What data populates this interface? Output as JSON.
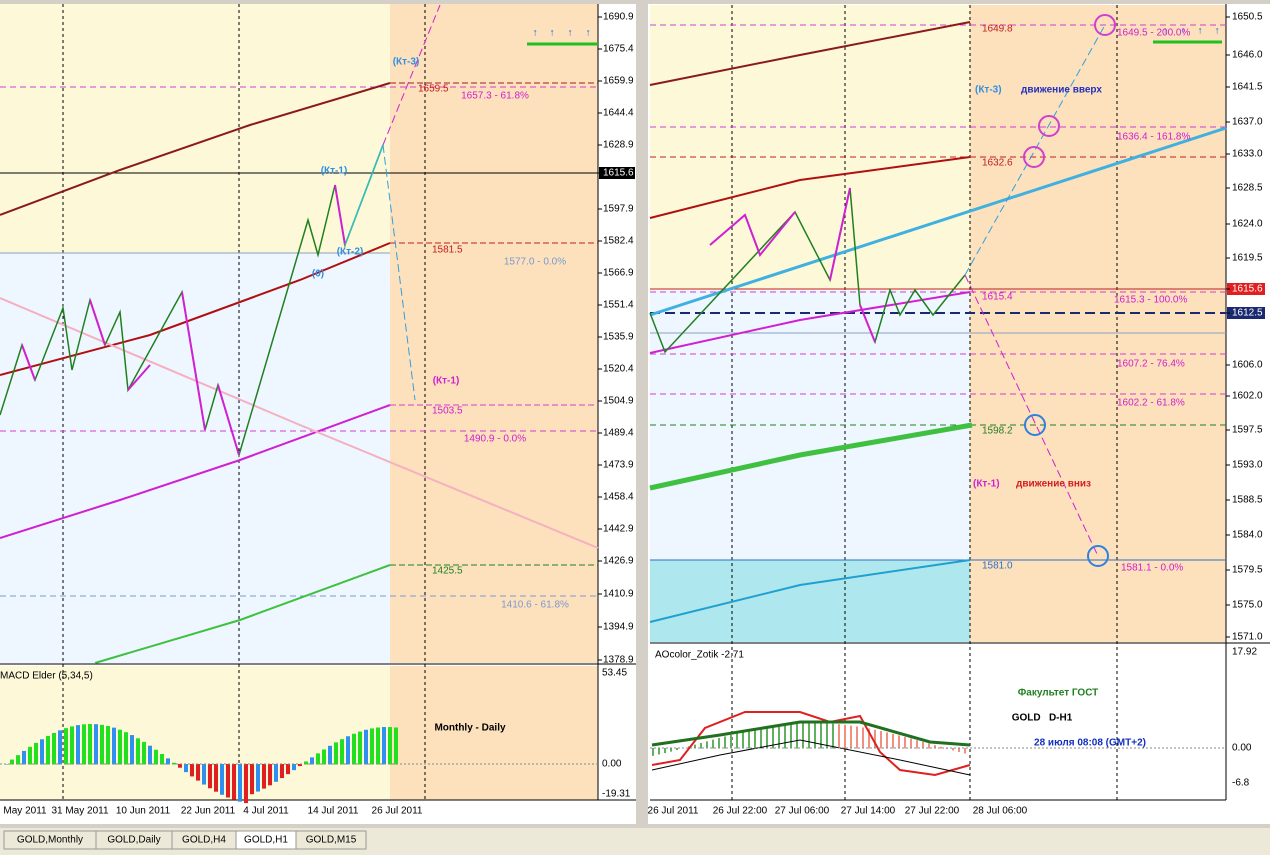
{
  "left": {
    "price_axis": [
      "1690.9",
      "1675.4",
      "1659.9",
      "1644.4",
      "1628.9",
      "1615.6",
      "1597.9",
      "1582.4",
      "1566.9",
      "1551.4",
      "1535.9",
      "1520.4",
      "1504.9",
      "1489.4",
      "1473.9",
      "1458.4",
      "1442.9",
      "1426.9",
      "1410.9",
      "1394.9",
      "1378.9"
    ],
    "time_axis": [
      "May 2011",
      "31 May 2011",
      "10 Jun 2011",
      "22 Jun 2011",
      "4 Jul 2011",
      "14 Jul 2011",
      "26 Jul 2011"
    ],
    "labels": [
      "(Кт-3)",
      "1659.5",
      "1657.3 - 61.8%",
      "(Кт-1)",
      "1581.5",
      "(Кт-2)",
      "(0)",
      "1577.0 - 0.0%",
      "(Кт-1)",
      "1503.5",
      "1490.9 - 0.0%",
      "1425.5",
      "1410.6 - 61.8%"
    ],
    "indicator": {
      "name": "MACD Elder (5,34,5)",
      "axis": [
        "53.45",
        "0.00",
        "-19.31"
      ]
    },
    "caption": "Monthly - Daily"
  },
  "right": {
    "price_axis": [
      "1650.5",
      "1646.0",
      "1641.5",
      "1637.0",
      "1633.0",
      "1628.5",
      "1624.0",
      "1619.5",
      "1615.6",
      "1612.5",
      "1606.0",
      "1602.0",
      "1597.5",
      "1593.0",
      "1588.5",
      "1584.0",
      "1579.5",
      "1575.0",
      "1571.0"
    ],
    "time_axis": [
      "26 Jul 2011",
      "26 Jul 22:00",
      "27 Jul 06:00",
      "27 Jul 14:00",
      "27 Jul 22:00",
      "28 Jul 06:00"
    ],
    "labels": [
      "1649.8",
      "1649.5 - 200.0%",
      "(Кт-3)",
      "движение вверх",
      "1636.4 - 161.8%",
      "1632.6",
      "1615.4",
      "1615.3 - 100.0%",
      "1607.2 - 76.4%",
      "1602.2 - 61.8%",
      "1598.2",
      "(Кт-1)",
      "движение вниз",
      "1581.0",
      "1581.1 - 0.0%"
    ],
    "indicator": {
      "name": "AOcolor_Zotik -2.71",
      "axis": [
        "17.92",
        "0.00",
        "-6.8"
      ]
    },
    "caption": [
      "Факультет ГОСТ",
      "GOLD   D-H1",
      "28 июля 08:08 (GMT+2)"
    ]
  },
  "tabs": [
    "GOLD,Monthly",
    "GOLD,Daily",
    "GOLD,H4",
    "GOLD,H1",
    "GOLD,M15"
  ]
}
